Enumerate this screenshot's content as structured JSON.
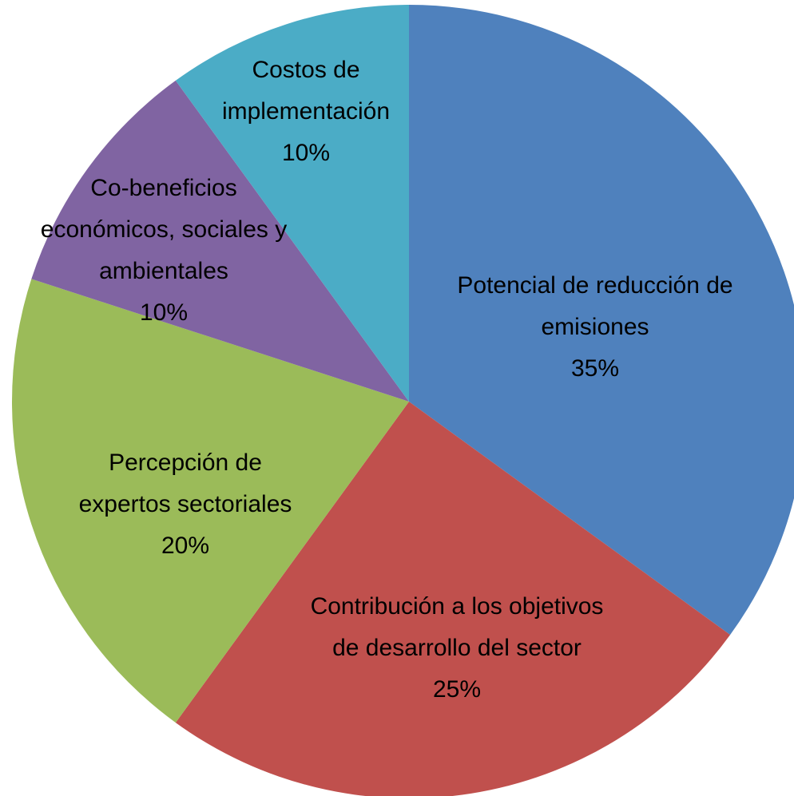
{
  "chart_data": {
    "type": "pie",
    "categories": [
      "Potencial de reducción de emisiones",
      "Contribución a los objetivos de desarrollo del sector",
      "Percepción de expertos sectoriales",
      "Co-beneficios económicos, sociales y ambientales",
      "Costos de implementación"
    ],
    "values": [
      35,
      25,
      20,
      10,
      10
    ],
    "value_labels": [
      "35%",
      "25%",
      "20%",
      "10%",
      "10%"
    ],
    "colors": [
      "#4f81bd",
      "#c0504d",
      "#9bbb59",
      "#8064a2",
      "#4bacc6"
    ]
  }
}
